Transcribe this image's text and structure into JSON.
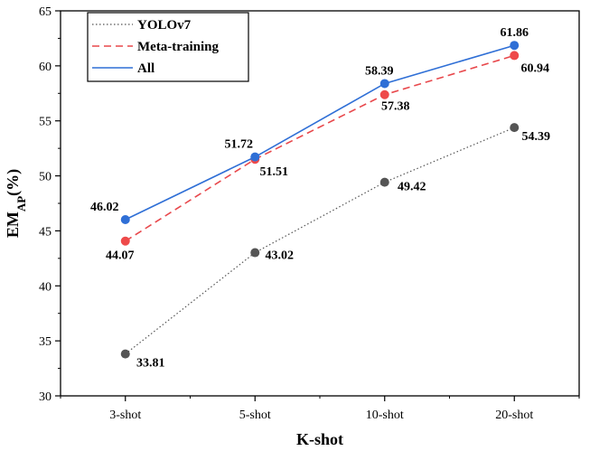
{
  "chart_data": {
    "type": "line",
    "xlabel": "K-shot",
    "ylabel_main": "EM",
    "ylabel_sub": "AP",
    "ylabel_suffix": "(%)",
    "categories": [
      "3-shot",
      "5-shot",
      "10-shot",
      "20-shot"
    ],
    "ylim": [
      30,
      65
    ],
    "yticks": [
      30,
      35,
      40,
      45,
      50,
      55,
      60,
      65
    ],
    "legend_position": "top-left",
    "grid": false,
    "series": [
      {
        "name": "YOLOv7",
        "values": [
          33.81,
          43.02,
          49.42,
          54.39
        ],
        "labels": [
          "33.81",
          "43.02",
          "49.42",
          "54.39"
        ],
        "line_color": "#555555",
        "marker_color": "#555555",
        "dash": "dotted"
      },
      {
        "name": "Meta-training",
        "values": [
          44.07,
          51.51,
          57.38,
          60.94
        ],
        "labels": [
          "44.07",
          "51.51",
          "57.38",
          "60.94"
        ],
        "line_color": "#e8484c",
        "marker_color": "#ee4a4a",
        "dash": "dashed"
      },
      {
        "name": "All",
        "values": [
          46.02,
          51.72,
          58.39,
          61.86
        ],
        "labels": [
          "46.02",
          "51.72",
          "58.39",
          "61.86"
        ],
        "line_color": "#2f6fd6",
        "marker_color": "#2f6fd6",
        "dash": "solid"
      }
    ]
  }
}
